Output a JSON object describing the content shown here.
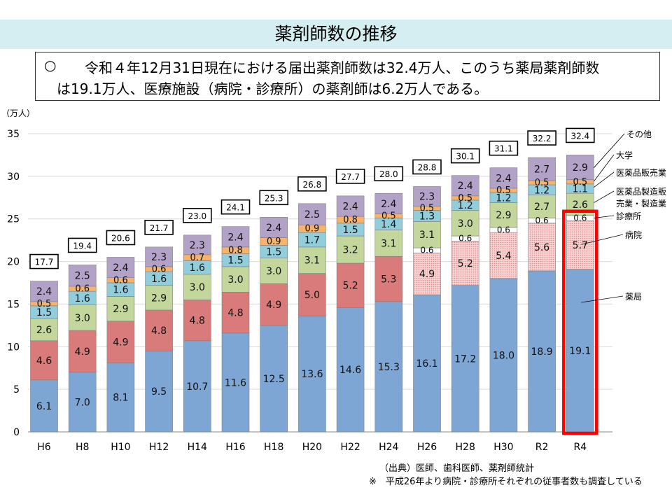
{
  "page_title": "薬剤師数の推移",
  "summary": {
    "bullet": "○",
    "line1": "令和４年12月31日現在における届出薬剤師数は32.4万人、このうち薬局薬剤師数",
    "line2": "は19.1万人、医療施設（病院・診療所）の薬剤師は6.2万人である。"
  },
  "notes": {
    "source": "（出典）医師、歯科医師、薬剤師統計",
    "survey": "※　平成26年より病院・診療所それぞれの従事者数も調査している"
  },
  "colors": {
    "pharmacy": "#7ea6d4",
    "hospital": "#d97b7b",
    "hospital_pattern": "#f2c4c4",
    "clinic": "#ffffff",
    "manufacturing": "#c3d69b",
    "sales": "#92cddc",
    "university": "#f7b26b",
    "other": "#b3a2c7",
    "highlight": "#ff0000"
  },
  "chart_data": {
    "type": "bar",
    "stacked": true,
    "ylabel": "（万人）",
    "ylim": [
      0,
      35
    ],
    "yticks": [
      0,
      5,
      10,
      15,
      20,
      25,
      30,
      35
    ],
    "grid": true,
    "categories": [
      "H6",
      "H8",
      "H10",
      "H12",
      "H14",
      "H16",
      "H18",
      "H20",
      "H22",
      "H24",
      "H26",
      "H28",
      "H30",
      "R2",
      "R4"
    ],
    "totals": [
      "17.7",
      "19.4",
      "20.6",
      "21.7",
      "23.0",
      "24.1",
      "25.3",
      "26.8",
      "27.7",
      "28.0",
      "28.8",
      "30.1",
      "31.1",
      "32.2",
      "32.4"
    ],
    "series": [
      {
        "name": "薬局",
        "values": [
          6.1,
          7.0,
          8.1,
          9.5,
          10.7,
          11.6,
          12.5,
          13.6,
          14.6,
          15.3,
          16.1,
          17.2,
          18.0,
          18.9,
          19.1
        ]
      },
      {
        "name": "病院",
        "values": [
          4.6,
          4.9,
          4.9,
          4.8,
          4.8,
          4.8,
          4.9,
          5.0,
          5.2,
          5.3,
          4.9,
          5.2,
          5.4,
          5.6,
          5.7
        ]
      },
      {
        "name": "診療所",
        "values": [
          null,
          null,
          null,
          null,
          null,
          null,
          null,
          null,
          null,
          null,
          0.6,
          0.6,
          0.6,
          0.6,
          0.6
        ]
      },
      {
        "name": "医薬品製造販売業・製造業",
        "values": [
          2.6,
          3.0,
          2.9,
          2.9,
          3.0,
          3.0,
          3.0,
          3.1,
          3.2,
          3.1,
          3.1,
          3.0,
          2.9,
          2.7,
          2.6
        ]
      },
      {
        "name": "医薬品販売業",
        "values": [
          1.5,
          1.6,
          1.6,
          1.6,
          1.6,
          1.5,
          1.5,
          1.7,
          1.5,
          1.4,
          1.3,
          1.2,
          1.2,
          1.2,
          1.1
        ]
      },
      {
        "name": "大学",
        "values": [
          0.5,
          0.6,
          0.6,
          0.6,
          0.7,
          0.8,
          0.9,
          0.9,
          0.8,
          0.5,
          0.5,
          0.5,
          0.5,
          0.5,
          0.5
        ]
      },
      {
        "name": "その他",
        "values": [
          2.4,
          2.5,
          2.4,
          2.3,
          2.3,
          2.4,
          2.4,
          2.5,
          2.4,
          2.4,
          2.3,
          2.4,
          2.4,
          2.7,
          2.9
        ]
      }
    ],
    "legend_labels": [
      {
        "series": "その他",
        "text": "その他"
      },
      {
        "series": "大学",
        "text": "大学"
      },
      {
        "series": "医薬品販売業",
        "text": "医薬品販売業"
      },
      {
        "series": "医薬品製造販売業・製造業",
        "text": "医薬品製造販"
      },
      {
        "series": "医薬品製造販売業・製造業",
        "text": "売業・製造業"
      },
      {
        "series": "診療所",
        "text": "診療所"
      },
      {
        "series": "病院",
        "text": "病院"
      },
      {
        "series": "薬局",
        "text": "薬局"
      }
    ],
    "legend_placement": "right",
    "highlight_category": "R4"
  }
}
